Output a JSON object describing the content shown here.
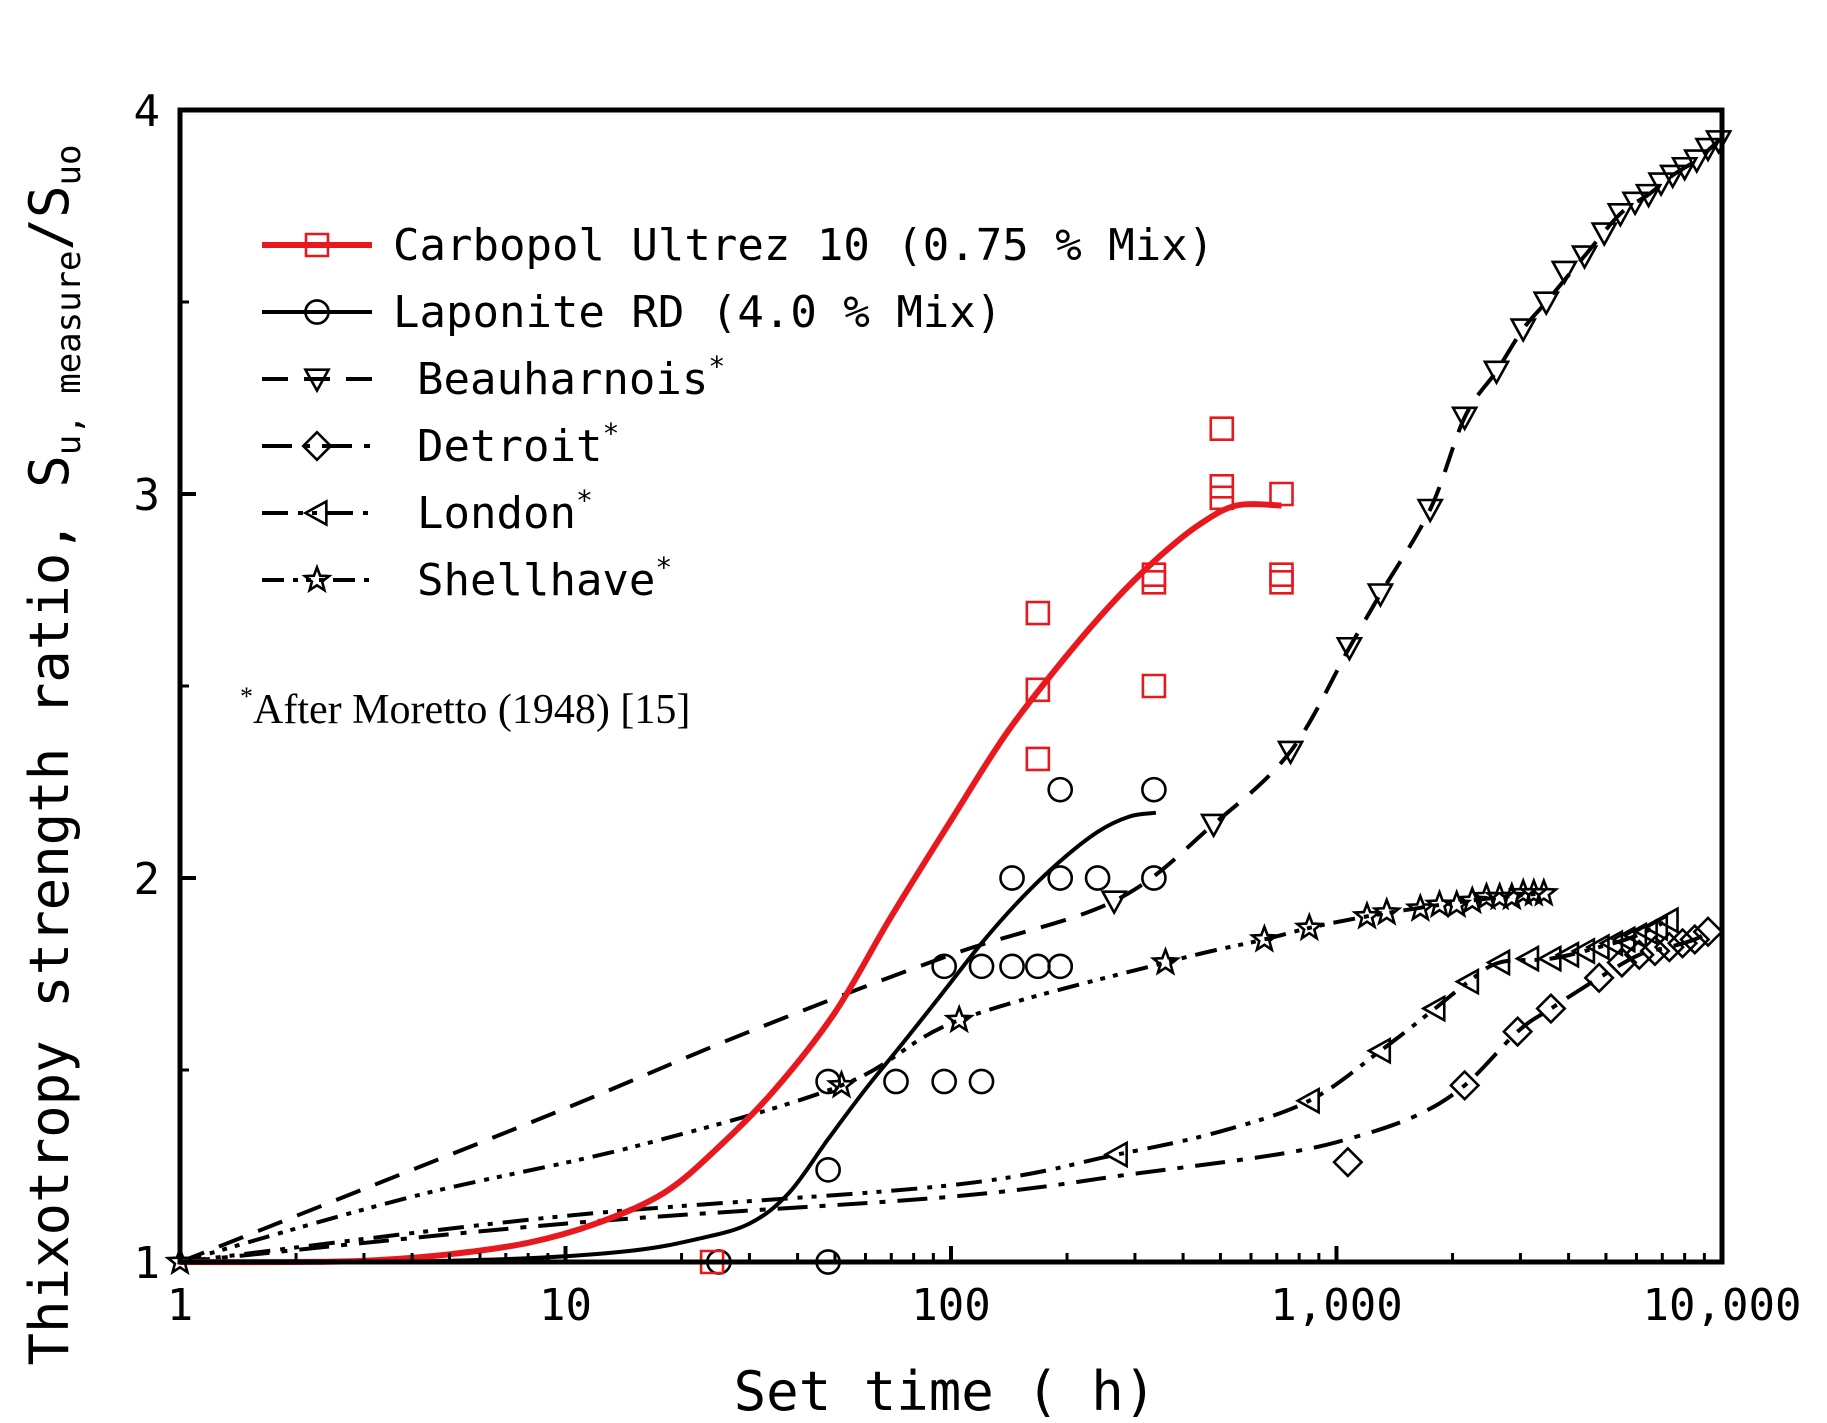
{
  "chart_data": {
    "type": "scatter",
    "title": "",
    "xlabel": "Set time ( h)",
    "ylabel": {
      "main": "Thixotropy strength ratio, ",
      "s1": "S",
      "sub1": "u, measure",
      "slash": "/S",
      "sub2": "uo"
    },
    "x_scale": "log",
    "xlim": [
      1,
      10000
    ],
    "ylim": [
      1,
      4
    ],
    "x_ticks": [
      {
        "value": 1,
        "label": "1"
      },
      {
        "value": 10,
        "label": "10"
      },
      {
        "value": 100,
        "label": "100"
      },
      {
        "value": 1000,
        "label": "1,000"
      },
      {
        "value": 10000,
        "label": "10,000"
      }
    ],
    "y_ticks": [
      {
        "value": 1,
        "label": "1"
      },
      {
        "value": 2,
        "label": "2"
      },
      {
        "value": 3,
        "label": "3"
      },
      {
        "value": 4,
        "label": "4"
      }
    ],
    "y_minor_ticks": [
      1.5,
      2.5,
      3.5
    ],
    "annotation": {
      "sup": "*",
      "text": "After Moretto (1948) [15]"
    },
    "series": [
      {
        "name": "Carbopol Ultrez 10 (0.75 % Mix)",
        "star": false,
        "marker": "square",
        "line": "solid-thick",
        "color": "#e8191e",
        "points": [
          [
            24,
            1.0
          ],
          [
            168,
            2.31
          ],
          [
            168,
            2.49
          ],
          [
            168,
            2.69
          ],
          [
            336,
            2.5
          ],
          [
            336,
            2.77
          ],
          [
            336,
            2.79
          ],
          [
            504,
            2.99
          ],
          [
            504,
            3.02
          ],
          [
            504,
            3.17
          ],
          [
            720,
            2.77
          ],
          [
            720,
            2.79
          ],
          [
            720,
            3.0
          ]
        ],
        "curve": [
          [
            1,
            1.0
          ],
          [
            2,
            1.0
          ],
          [
            3,
            1.003
          ],
          [
            5,
            1.02
          ],
          [
            8,
            1.05
          ],
          [
            12,
            1.1
          ],
          [
            18,
            1.18
          ],
          [
            25,
            1.3
          ],
          [
            35,
            1.45
          ],
          [
            50,
            1.65
          ],
          [
            70,
            1.9
          ],
          [
            100,
            2.15
          ],
          [
            140,
            2.38
          ],
          [
            200,
            2.58
          ],
          [
            270,
            2.73
          ],
          [
            350,
            2.84
          ],
          [
            440,
            2.92
          ],
          [
            550,
            2.97
          ],
          [
            720,
            2.97
          ]
        ]
      },
      {
        "name": "Laponite RD (4.0 % Mix)",
        "star": false,
        "marker": "circle",
        "line": "solid",
        "color": "#000000",
        "points": [
          [
            25,
            1.0
          ],
          [
            48,
            1.0
          ],
          [
            48,
            1.24
          ],
          [
            48,
            1.47
          ],
          [
            72,
            1.47
          ],
          [
            96,
            1.47
          ],
          [
            120,
            1.47
          ],
          [
            96,
            1.77
          ],
          [
            120,
            1.77
          ],
          [
            144,
            1.77
          ],
          [
            168,
            1.77
          ],
          [
            192,
            1.77
          ],
          [
            144,
            2.0
          ],
          [
            192,
            2.0
          ],
          [
            240,
            2.0
          ],
          [
            336,
            2.0
          ],
          [
            192,
            2.23
          ],
          [
            336,
            2.23
          ]
        ],
        "curve": [
          [
            1,
            1.0
          ],
          [
            3,
            1.0
          ],
          [
            8,
            1.01
          ],
          [
            15,
            1.03
          ],
          [
            22,
            1.06
          ],
          [
            30,
            1.1
          ],
          [
            38,
            1.18
          ],
          [
            48,
            1.32
          ],
          [
            60,
            1.45
          ],
          [
            75,
            1.57
          ],
          [
            95,
            1.7
          ],
          [
            120,
            1.83
          ],
          [
            150,
            1.94
          ],
          [
            190,
            2.04
          ],
          [
            240,
            2.12
          ],
          [
            290,
            2.16
          ],
          [
            340,
            2.17
          ]
        ]
      },
      {
        "name": "Beauharnois",
        "star": true,
        "marker": "triangle-down",
        "line": "dashed",
        "color": "#000000",
        "points": [
          [
            265,
            1.94
          ],
          [
            480,
            2.14
          ],
          [
            760,
            2.33
          ],
          [
            1080,
            2.6
          ],
          [
            1300,
            2.74
          ],
          [
            1750,
            2.96
          ],
          [
            2150,
            3.2
          ],
          [
            2600,
            3.32
          ],
          [
            3050,
            3.43
          ],
          [
            3500,
            3.5
          ],
          [
            3900,
            3.58
          ],
          [
            4400,
            3.62
          ],
          [
            4950,
            3.68
          ],
          [
            5450,
            3.73
          ],
          [
            5950,
            3.76
          ],
          [
            6450,
            3.78
          ],
          [
            6950,
            3.81
          ],
          [
            7450,
            3.83
          ],
          [
            8000,
            3.85
          ],
          [
            8600,
            3.87
          ],
          [
            9200,
            3.9
          ],
          [
            9800,
            3.92
          ]
        ],
        "curve": [
          [
            1,
            1.0
          ],
          [
            3,
            1.19
          ],
          [
            10,
            1.4
          ],
          [
            30,
            1.6
          ],
          [
            100,
            1.8
          ],
          [
            265,
            1.94
          ],
          [
            480,
            2.14
          ],
          [
            760,
            2.33
          ],
          [
            1080,
            2.6
          ],
          [
            1300,
            2.74
          ],
          [
            1750,
            2.96
          ],
          [
            2150,
            3.2
          ],
          [
            2600,
            3.32
          ],
          [
            3050,
            3.43
          ],
          [
            3500,
            3.5
          ],
          [
            4400,
            3.62
          ],
          [
            5450,
            3.73
          ],
          [
            6450,
            3.78
          ],
          [
            7450,
            3.83
          ],
          [
            8600,
            3.87
          ],
          [
            9800,
            3.92
          ]
        ]
      },
      {
        "name": "Detroit",
        "star": true,
        "marker": "diamond",
        "line": "dashdot",
        "color": "#000000",
        "points": [
          [
            1070,
            1.26
          ],
          [
            2150,
            1.46
          ],
          [
            2950,
            1.6
          ],
          [
            3600,
            1.66
          ],
          [
            4800,
            1.74
          ],
          [
            5500,
            1.78
          ],
          [
            6100,
            1.8
          ],
          [
            6700,
            1.81
          ],
          [
            7300,
            1.82
          ],
          [
            7900,
            1.83
          ],
          [
            8500,
            1.84
          ],
          [
            9200,
            1.86
          ]
        ],
        "curve": [
          [
            1,
            1.0
          ],
          [
            10,
            1.1
          ],
          [
            100,
            1.17
          ],
          [
            300,
            1.23
          ],
          [
            700,
            1.28
          ],
          [
            1070,
            1.32
          ],
          [
            1600,
            1.38
          ],
          [
            2150,
            1.46
          ],
          [
            2950,
            1.6
          ],
          [
            3600,
            1.66
          ],
          [
            4800,
            1.74
          ],
          [
            6100,
            1.8
          ],
          [
            7300,
            1.82
          ],
          [
            8500,
            1.84
          ],
          [
            9200,
            1.86
          ]
        ]
      },
      {
        "name": "London",
        "star": true,
        "marker": "triangle-left",
        "line": "dashdotdot",
        "color": "#000000",
        "points": [
          [
            270,
            1.28
          ],
          [
            850,
            1.42
          ],
          [
            1300,
            1.55
          ],
          [
            1800,
            1.66
          ],
          [
            2200,
            1.73
          ],
          [
            2650,
            1.78
          ],
          [
            3150,
            1.79
          ],
          [
            3600,
            1.79
          ],
          [
            4000,
            1.8
          ],
          [
            4400,
            1.81
          ],
          [
            4800,
            1.82
          ],
          [
            5200,
            1.83
          ],
          [
            5600,
            1.84
          ],
          [
            6000,
            1.85
          ],
          [
            6400,
            1.86
          ],
          [
            6800,
            1.87
          ],
          [
            7250,
            1.89
          ]
        ],
        "curve": [
          [
            1,
            1.0
          ],
          [
            10,
            1.12
          ],
          [
            100,
            1.2
          ],
          [
            270,
            1.28
          ],
          [
            500,
            1.34
          ],
          [
            850,
            1.42
          ],
          [
            1300,
            1.55
          ],
          [
            1800,
            1.66
          ],
          [
            2200,
            1.73
          ],
          [
            2650,
            1.78
          ],
          [
            3600,
            1.79
          ],
          [
            4800,
            1.82
          ],
          [
            6000,
            1.85
          ],
          [
            7250,
            1.89
          ]
        ]
      },
      {
        "name": "Shellhave",
        "star": true,
        "marker": "star",
        "line": "dashdotdotdot",
        "color": "#000000",
        "points": [
          [
            1,
            1.0
          ],
          [
            52,
            1.46
          ],
          [
            105,
            1.63
          ],
          [
            360,
            1.78
          ],
          [
            650,
            1.84
          ],
          [
            850,
            1.87
          ],
          [
            1200,
            1.9
          ],
          [
            1350,
            1.91
          ],
          [
            1650,
            1.92
          ],
          [
            1850,
            1.93
          ],
          [
            2050,
            1.93
          ],
          [
            2250,
            1.94
          ],
          [
            2450,
            1.95
          ],
          [
            2650,
            1.95
          ],
          [
            2850,
            1.95
          ],
          [
            3050,
            1.96
          ],
          [
            3250,
            1.96
          ],
          [
            3450,
            1.96
          ]
        ],
        "curve": [
          [
            1,
            1.0
          ],
          [
            4,
            1.17
          ],
          [
            15,
            1.3
          ],
          [
            52,
            1.46
          ],
          [
            105,
            1.63
          ],
          [
            360,
            1.78
          ],
          [
            650,
            1.84
          ],
          [
            850,
            1.87
          ],
          [
            1200,
            1.9
          ],
          [
            1850,
            1.93
          ],
          [
            2650,
            1.95
          ],
          [
            3450,
            1.96
          ]
        ]
      }
    ]
  }
}
